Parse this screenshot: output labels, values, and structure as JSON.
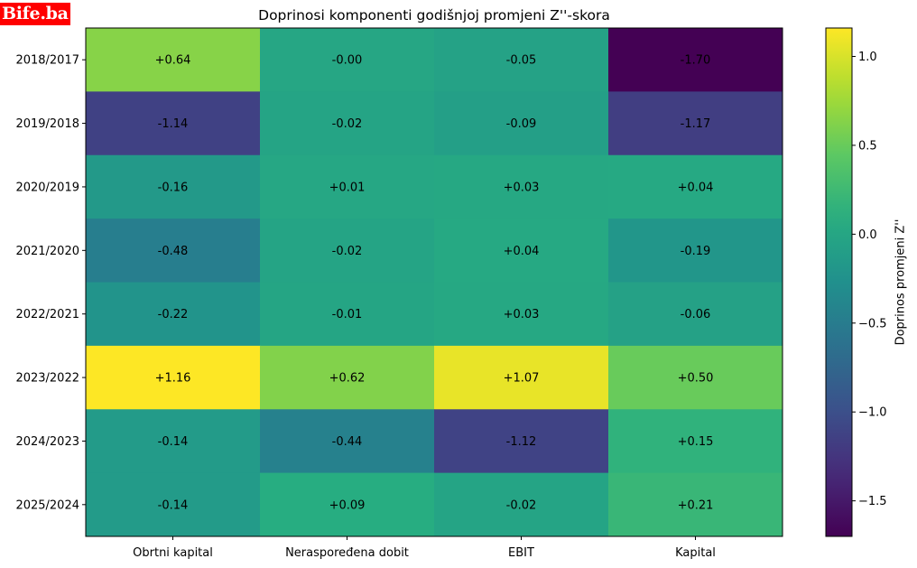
{
  "logo": {
    "text": "Bife.ba",
    "color": "#ff0000"
  },
  "chart_data": {
    "type": "heatmap",
    "title": "Doprinosi komponenti godišnjoj promjeni Z''-skora",
    "colormap": "viridis",
    "row_labels": [
      "2018/2017",
      "2019/2018",
      "2020/2019",
      "2021/2020",
      "2022/2021",
      "2023/2022",
      "2024/2023",
      "2025/2024"
    ],
    "col_labels": [
      "Obrtni kapital",
      "Neraspoređena dobit",
      "EBIT",
      "Kapital"
    ],
    "values": [
      [
        0.64,
        -0.0,
        -0.05,
        -1.7
      ],
      [
        -1.14,
        -0.02,
        -0.09,
        -1.17
      ],
      [
        -0.16,
        0.01,
        0.03,
        0.04
      ],
      [
        -0.48,
        -0.02,
        0.04,
        -0.19
      ],
      [
        -0.22,
        -0.01,
        0.03,
        -0.06
      ],
      [
        1.16,
        0.62,
        1.07,
        0.5
      ],
      [
        -0.14,
        -0.44,
        -1.12,
        0.15
      ],
      [
        -0.14,
        0.09,
        -0.02,
        0.21
      ]
    ],
    "cell_labels": [
      [
        "+0.64",
        "-0.00",
        "-0.05",
        "-1.70"
      ],
      [
        "-1.14",
        "-0.02",
        "-0.09",
        "-1.17"
      ],
      [
        "-0.16",
        "+0.01",
        "+0.03",
        "+0.04"
      ],
      [
        "-0.48",
        "-0.02",
        "+0.04",
        "-0.19"
      ],
      [
        "-0.22",
        "-0.01",
        "+0.03",
        "-0.06"
      ],
      [
        "+1.16",
        "+0.62",
        "+1.07",
        "+0.50"
      ],
      [
        "-0.14",
        "-0.44",
        "-1.12",
        "+0.15"
      ],
      [
        "-0.14",
        "+0.09",
        "-0.02",
        "+0.21"
      ]
    ],
    "colorbar": {
      "label": "Doprinos promjeni Z''",
      "range": [
        -1.7,
        1.16
      ],
      "ticks": [
        1.0,
        0.5,
        0.0,
        -0.5,
        -1.0,
        -1.5
      ],
      "tick_labels": [
        "1.0",
        "0.5",
        "0.0",
        "−0.5",
        "−1.0",
        "−1.5"
      ]
    }
  }
}
